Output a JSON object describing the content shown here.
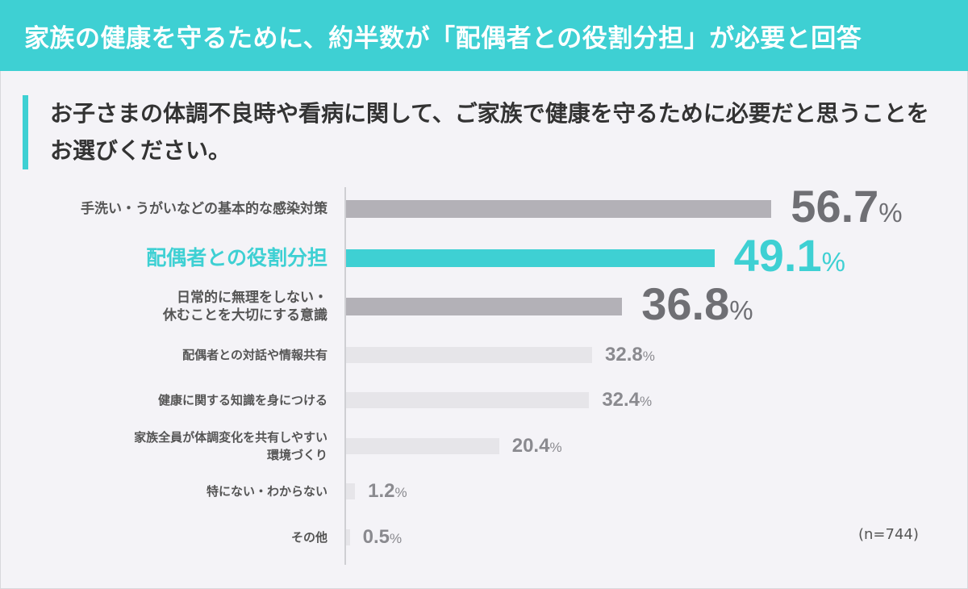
{
  "header": {
    "banner_title": "家族の健康を守るために、約半数が「配偶者との役割分担」が必要と回答"
  },
  "question": "お子さまの体調不良時や看病に関して、ご家族で健康を守るために必要だと思うことをお選びください。",
  "sample_size": "(n=744)",
  "colors": {
    "accent": "#3ed0d3",
    "bar_dark": "#b3b1b7",
    "bar_light": "#e6e5e9",
    "value_dark": "#6f6f74",
    "value_light": "#8a8a8f"
  },
  "chart_data": {
    "type": "bar",
    "orientation": "horizontal",
    "unit": "%",
    "xlim": [
      0,
      100
    ],
    "categories": [
      [
        "手洗い・うがいなどの基本的な感染対策"
      ],
      [
        "配偶者との役割分担"
      ],
      [
        "日常的に無理をしない・",
        "休むことを大切にする意識"
      ],
      [
        "配偶者との対話や情報共有"
      ],
      [
        "健康に関する知識を身につける"
      ],
      [
        "家族全員が体調変化を共有しやすい",
        "環境づくり"
      ],
      [
        "特にない・わからない"
      ],
      [
        "その他"
      ]
    ],
    "values": [
      56.7,
      49.1,
      36.8,
      32.8,
      32.4,
      20.4,
      1.2,
      0.5
    ],
    "value_labels": [
      "56.7",
      "49.1",
      "36.8",
      "32.8",
      "32.4",
      "20.4",
      "1.2",
      "0.5"
    ],
    "highlight_index": 1,
    "emphasis": [
      "top",
      "highlight",
      "top",
      "normal",
      "normal",
      "normal",
      "normal",
      "normal"
    ]
  }
}
